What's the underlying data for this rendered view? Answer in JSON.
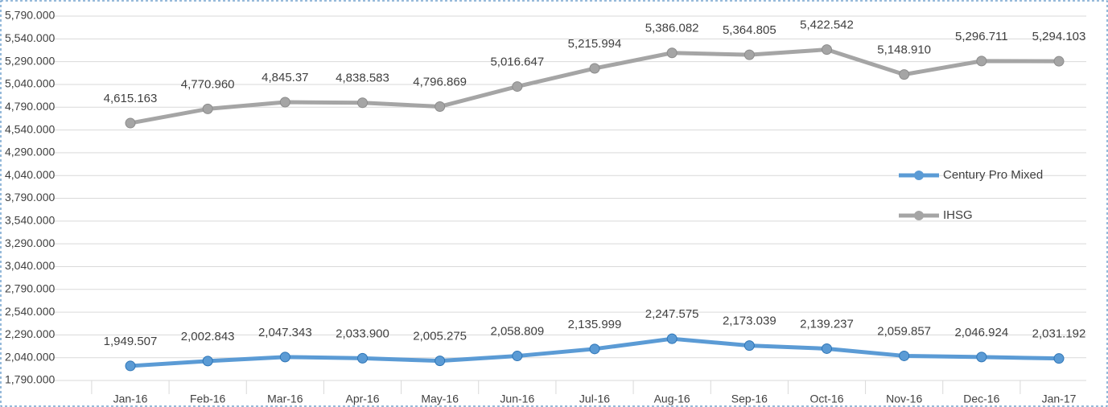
{
  "chart_data": {
    "type": "line",
    "categories": [
      "Jan-16",
      "Feb-16",
      "Mar-16",
      "Apr-16",
      "May-16",
      "Jun-16",
      "Jul-16",
      "Aug-16",
      "Sep-16",
      "Oct-16",
      "Nov-16",
      "Dec-16",
      "Jan-17"
    ],
    "series": [
      {
        "name": "Century Pro Mixed",
        "color": "#5b9bd5",
        "values": [
          1949.507,
          2002.843,
          2047.343,
          2033.9,
          2005.275,
          2058.809,
          2135.999,
          2247.575,
          2173.039,
          2139.237,
          2059.857,
          2046.924,
          2031.192
        ],
        "value_labels": [
          "1,949.507",
          "2,002.843",
          "2,047.343",
          "2,033.900",
          "2,005.275",
          "2,058.809",
          "2,135.999",
          "2,247.575",
          "2,173.039",
          "2,139.237",
          "2,059.857",
          "2,046.924",
          "2,031.192"
        ]
      },
      {
        "name": "IHSG",
        "color": "#a5a5a5",
        "values": [
          4615.163,
          4770.96,
          4845.37,
          4838.583,
          4796.869,
          5016.647,
          5215.994,
          5386.082,
          5364.805,
          5422.542,
          5148.91,
          5296.711,
          5294.103
        ],
        "value_labels": [
          "4,615.163",
          "4,770.960",
          "4,845.37",
          "4,838.583",
          "4,796.869",
          "5,016.647",
          "5,215.994",
          "5,386.082",
          "5,364.805",
          "5,422.542",
          "5,148.910",
          "5,296.711",
          "5,294.103"
        ]
      }
    ],
    "ylim": [
      1790,
      5790
    ],
    "yticks": [
      {
        "value": 1790,
        "label": "1,790.000"
      },
      {
        "value": 2040,
        "label": "2,040.000"
      },
      {
        "value": 2290,
        "label": "2,290.000"
      },
      {
        "value": 2540,
        "label": "2,540.000"
      },
      {
        "value": 2790,
        "label": "2,790.000"
      },
      {
        "value": 3040,
        "label": "3,040.000"
      },
      {
        "value": 3290,
        "label": "3,290.000"
      },
      {
        "value": 3540,
        "label": "3,540.000"
      },
      {
        "value": 3790,
        "label": "3,790.000"
      },
      {
        "value": 4040,
        "label": "4,040.000"
      },
      {
        "value": 4290,
        "label": "4,290.000"
      },
      {
        "value": 4540,
        "label": "4,540.000"
      },
      {
        "value": 4790,
        "label": "4,790.000"
      },
      {
        "value": 5040,
        "label": "5,040.000"
      },
      {
        "value": 5290,
        "label": "5,290.000"
      },
      {
        "value": 5540,
        "label": "5,540.000"
      },
      {
        "value": 5790,
        "label": "5,790.000"
      }
    ],
    "grid": true,
    "legend": "right"
  }
}
